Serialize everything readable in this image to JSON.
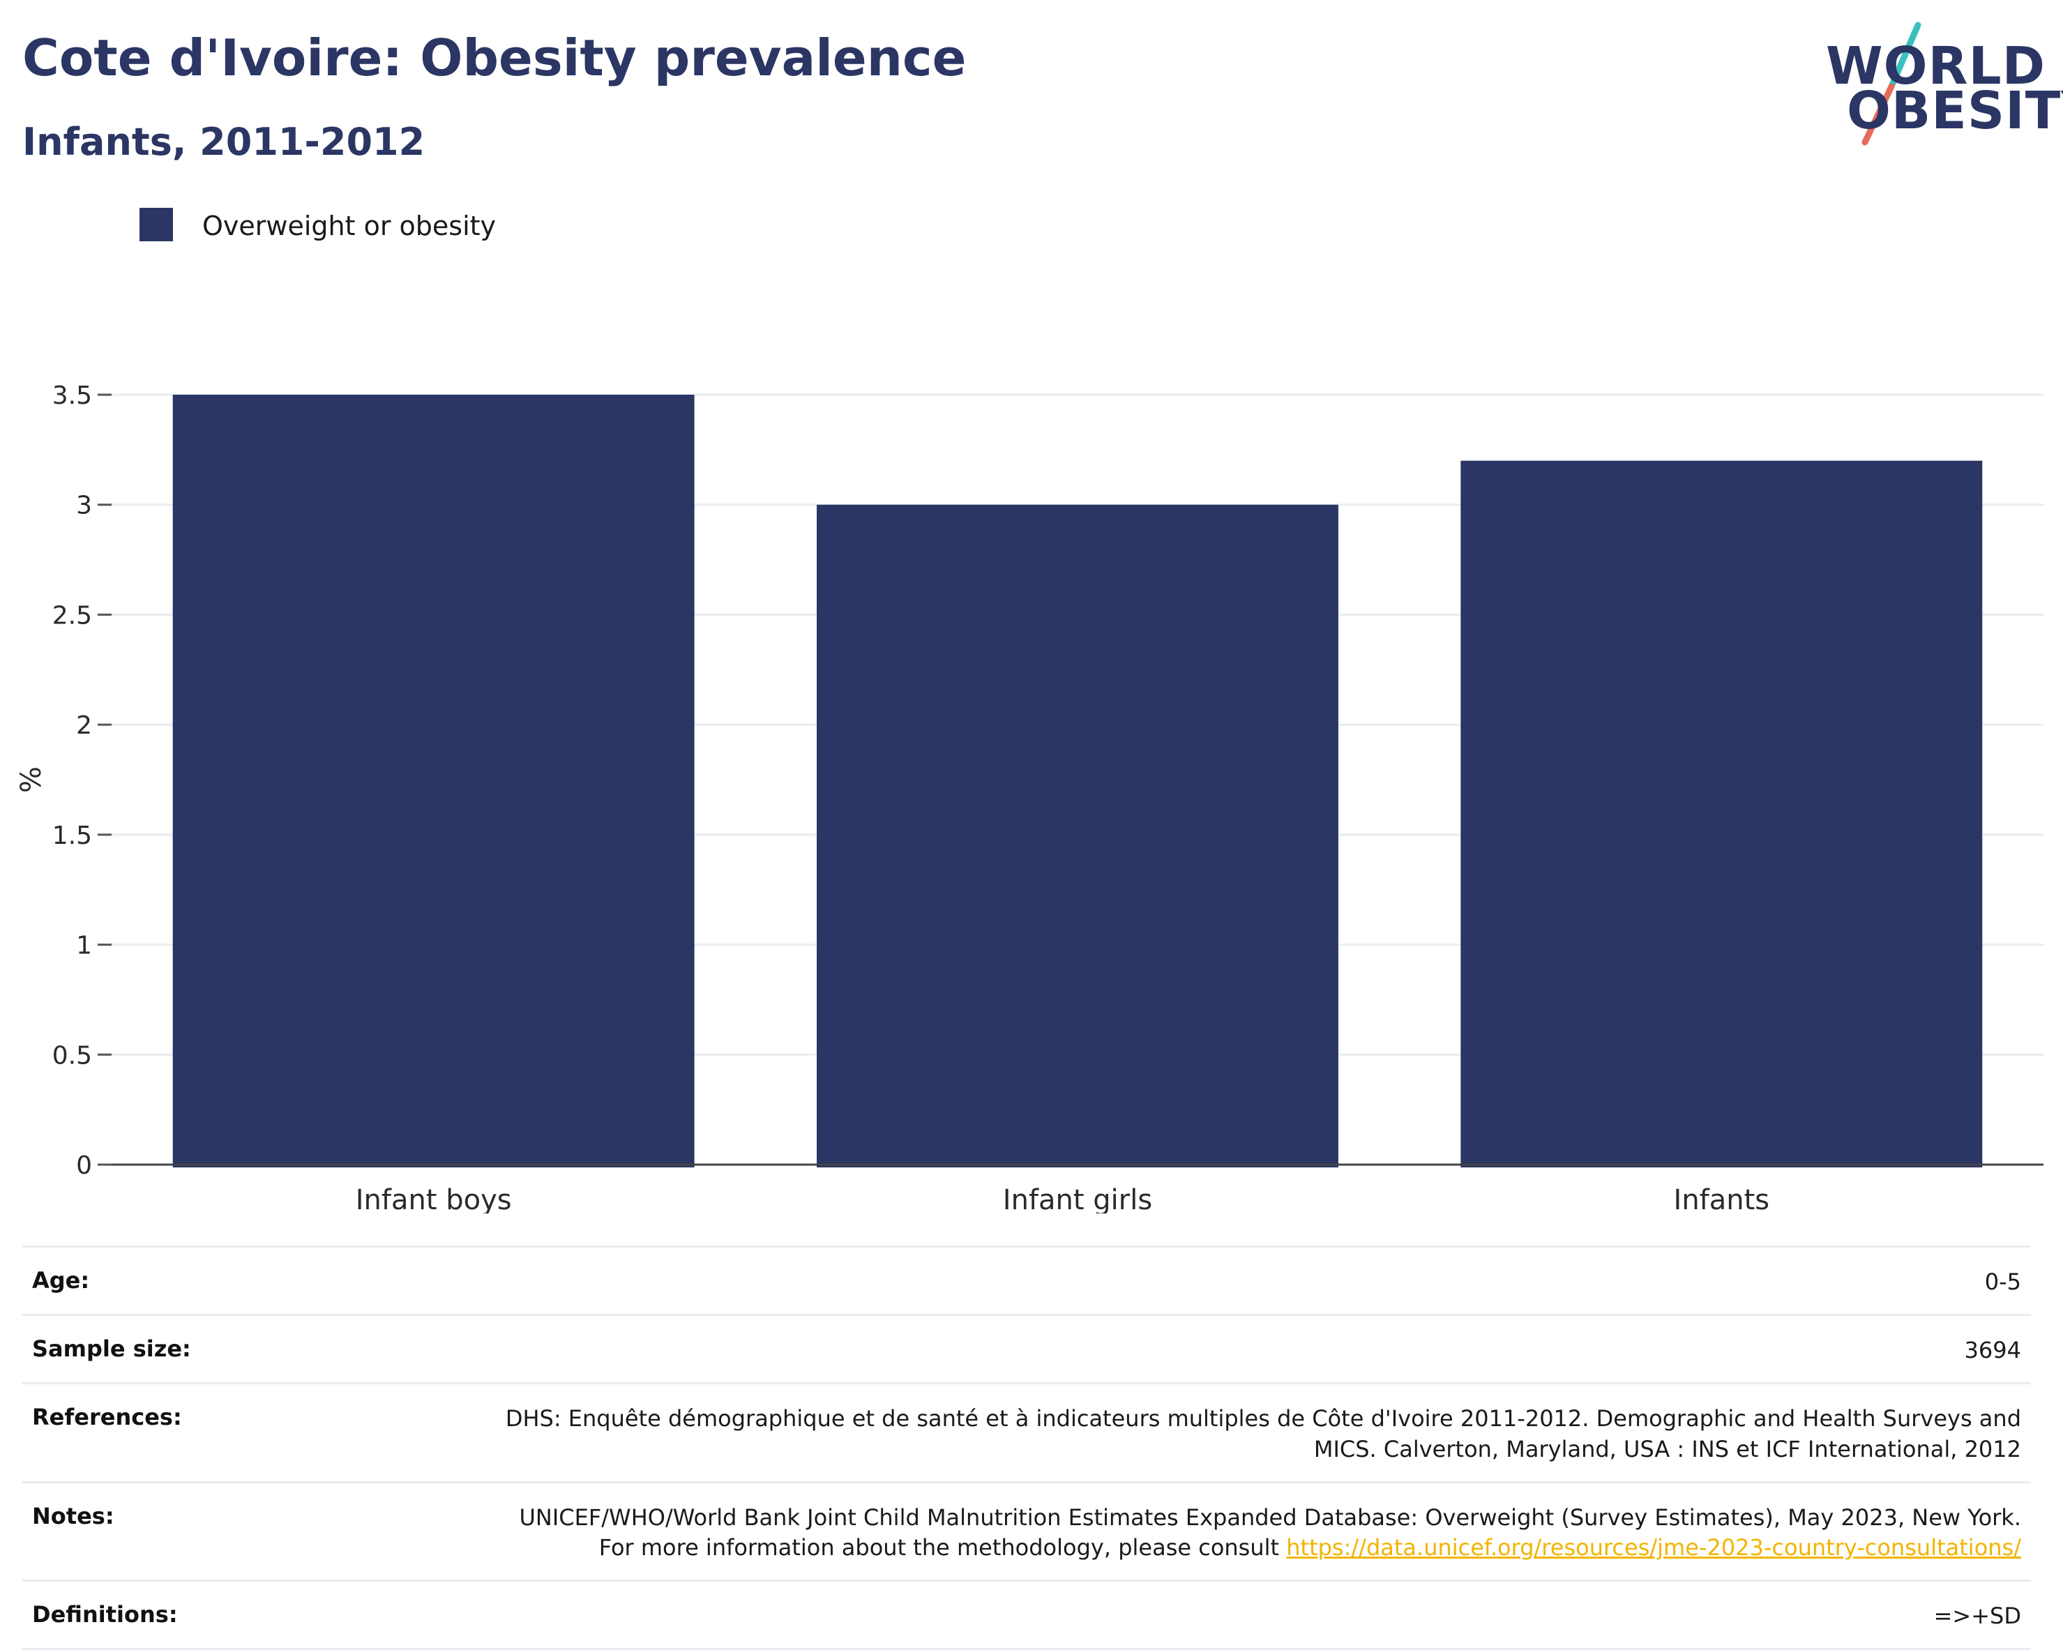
{
  "header": {
    "title": "Cote d'Ivoire: Obesity prevalence",
    "subtitle": "Infants, 2011-2012"
  },
  "logo": {
    "line1": "WORLD",
    "line2": "OBESITY",
    "accent_teal": "#3bbfbf",
    "accent_coral": "#e86a5a"
  },
  "legend": {
    "label": "Overweight or obesity",
    "color": "#2b3664"
  },
  "chart_data": {
    "type": "bar",
    "categories": [
      "Infant boys",
      "Infant girls",
      "Infants"
    ],
    "series": [
      {
        "name": "Overweight or obesity",
        "values": [
          3.5,
          3.0,
          3.2
        ],
        "color": "#2b3664"
      }
    ],
    "ylabel": "%",
    "xlabel": "",
    "ylim": [
      0,
      3.5
    ],
    "yticks": [
      0,
      0.5,
      1,
      1.5,
      2,
      2.5,
      3,
      3.5
    ],
    "ytick_labels": [
      "0",
      "0.5",
      "1",
      "1.5",
      "2",
      "2.5",
      "3",
      "3.5"
    ],
    "grid": true,
    "legend_position": "top-left"
  },
  "info": {
    "rows": [
      {
        "key": "Age:",
        "value": "0-5"
      },
      {
        "key": "Sample size:",
        "value": "3694"
      },
      {
        "key": "References:",
        "value": "DHS: Enquête démographique et de santé et à indicateurs multiples de Côte d'Ivoire 2011-2012. Demographic and Health Surveys and MICS. Calverton, Maryland, USA : INS et ICF International, 2012"
      },
      {
        "key": "Notes:",
        "value": "UNICEF/WHO/World Bank Joint Child Malnutrition Estimates Expanded Database: Overweight (Survey Estimates), May 2023, New York. For more information about the methodology, please consult",
        "link": "https://data.unicef.org/resources/jme-2023-country-consultations/"
      },
      {
        "key": "Definitions:",
        "value": "=>+SD"
      }
    ]
  }
}
